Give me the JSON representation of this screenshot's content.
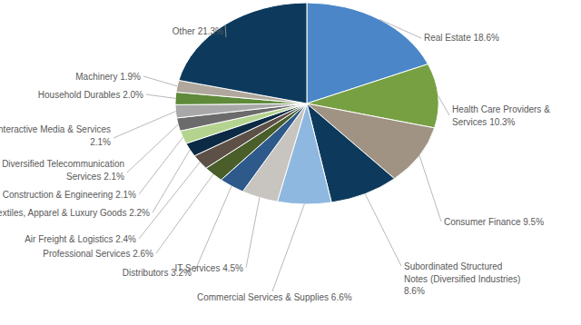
{
  "chart_data": {
    "type": "pie",
    "categories": [
      "Real Estate",
      "Health Care Providers & Services",
      "Consumer Finance",
      "Subordinated Structured Notes (Diversified Industries)",
      "Commercial Services & Supplies",
      "IT Services",
      "Distributors",
      "Professional Services",
      "Air Freight & Logistics",
      "Textiles, Apparel & Luxury Goods",
      "Construction & Engineering",
      "Diversified Telecommunication Services",
      "Interactive Media & Services",
      "Household Durables",
      "Machinery",
      "Other"
    ],
    "values": [
      18.6,
      10.3,
      9.5,
      8.6,
      6.6,
      4.5,
      3.2,
      2.6,
      2.4,
      2.2,
      2.1,
      2.1,
      2.1,
      2.0,
      1.9,
      21.3
    ],
    "value_labels": [
      "18.6%",
      "10.3%",
      "9.5%",
      "8.6%",
      "6.6%",
      "4.5%",
      "3.2%",
      "2.6%",
      "2.4%",
      "2.2%",
      "2.1%",
      "2.1%",
      "2.1%",
      "2.0%",
      "1.9%",
      "21.3%"
    ],
    "colors": [
      "#4a86c8",
      "#77a043",
      "#a09383",
      "#0d3a5c",
      "#8fb8e0",
      "#c8c4bf",
      "#2d5a8a",
      "#4a5e2a",
      "#5d5047",
      "#0d2a44",
      "#b3d38f",
      "#6b6b6b",
      "#a8a8a8",
      "#5e8a3a",
      "#b0a89c",
      "#0d3a5c"
    ],
    "data_labels": true
  }
}
